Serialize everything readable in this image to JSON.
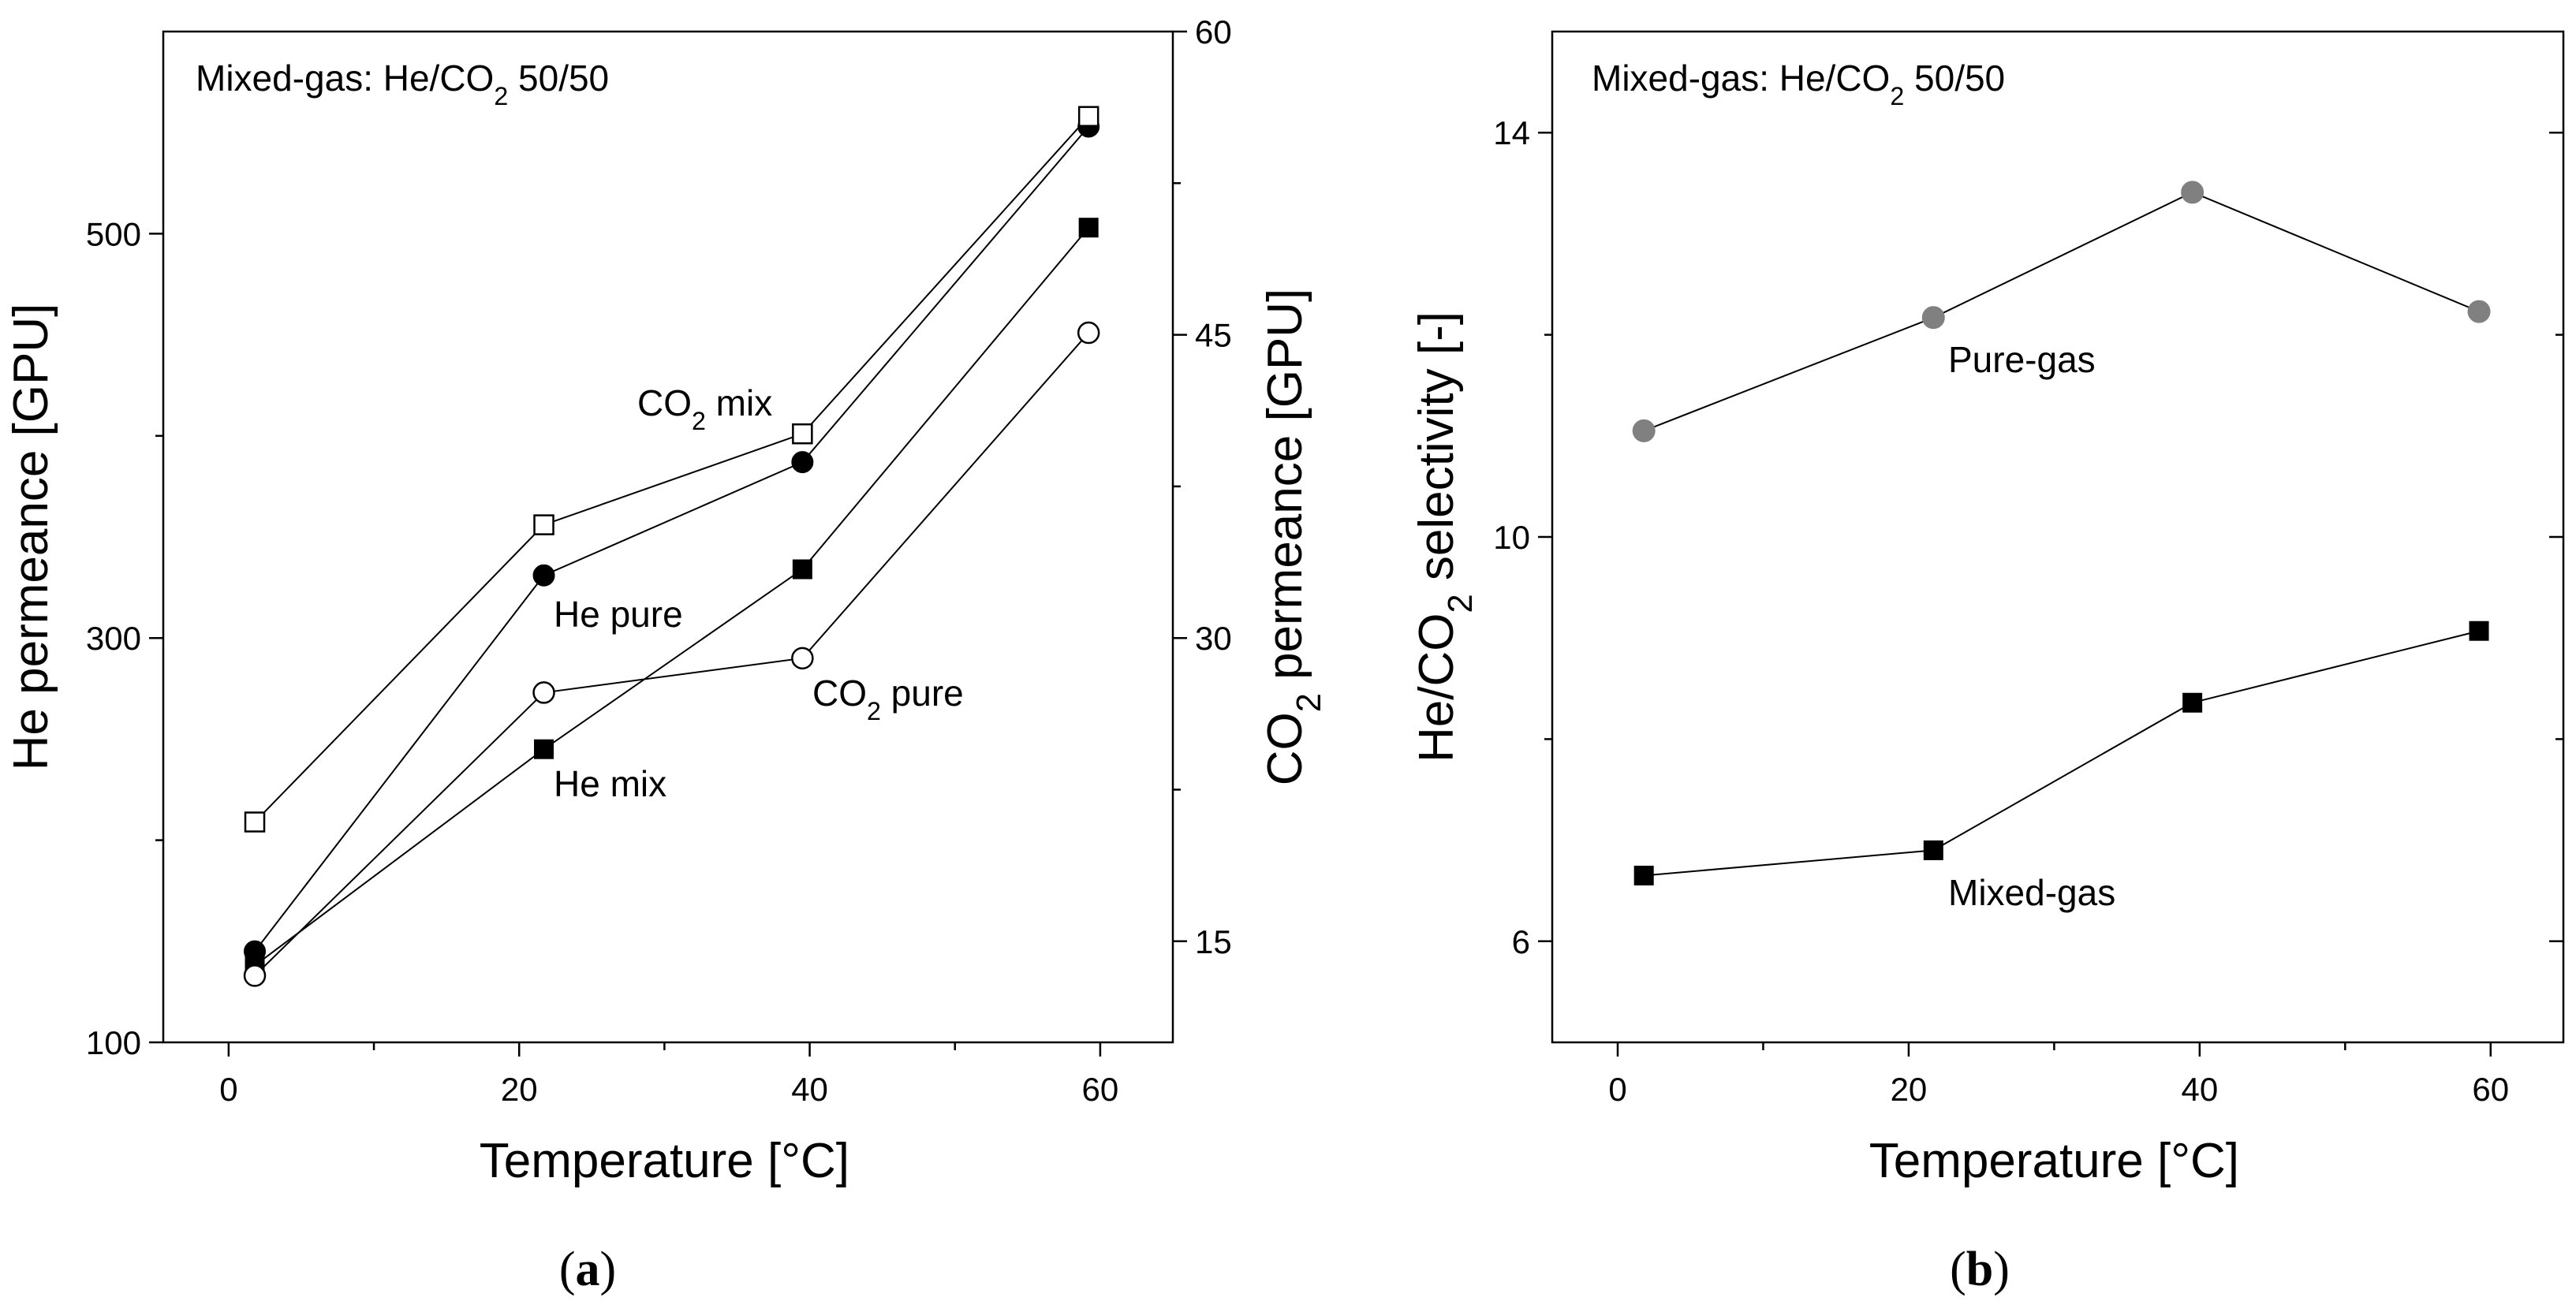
{
  "figure": {
    "caption_a": {
      "open": "(",
      "letter": "a",
      "close": ")"
    },
    "caption_b": {
      "open": "(",
      "letter": "b",
      "close": ")"
    }
  },
  "chart_data": [
    {
      "id": "a",
      "type": "line",
      "title": "",
      "note": "Mixed-gas: He/CO2 50/50",
      "note_parts": {
        "base": "Mixed-gas: He/CO",
        "sub": "2",
        "after": " 50/50"
      },
      "xlabel": "Temperature [°C]",
      "xlim": [
        -4.5,
        65
      ],
      "xticks": [
        0,
        20,
        40,
        60
      ],
      "y_left": {
        "label": "He permeance [GPU]",
        "lim": [
          100,
          600
        ],
        "ticks": [
          100,
          300,
          500
        ]
      },
      "y_right": {
        "label": "CO2 permeance [GPU]",
        "label_parts": {
          "base": "CO",
          "sub": "2",
          "after": " permeance [GPU]"
        },
        "lim": [
          10,
          60
        ],
        "ticks": [
          15,
          30,
          45,
          60
        ]
      },
      "series": [
        {
          "name": "He pure",
          "axis": "left",
          "marker": "filled-circle",
          "x": [
            1.8,
            21.7,
            39.5,
            59.2
          ],
          "values": [
            145,
            331,
            387,
            553
          ],
          "label_parts": {
            "base": "He pure",
            "sub": "",
            "after": ""
          }
        },
        {
          "name": "He mix",
          "axis": "left",
          "marker": "filled-square",
          "x": [
            1.8,
            21.7,
            39.5,
            59.2
          ],
          "values": [
            138,
            245,
            334,
            503
          ],
          "label_parts": {
            "base": "He mix",
            "sub": "",
            "after": ""
          }
        },
        {
          "name": "CO2 pure",
          "axis": "right",
          "marker": "open-circle",
          "x": [
            1.8,
            21.7,
            39.5,
            59.2
          ],
          "values": [
            13.3,
            27.3,
            29.0,
            45.1
          ],
          "label_parts": {
            "base": "CO",
            "sub": "2",
            "after": " pure"
          }
        },
        {
          "name": "CO2 mix",
          "axis": "right",
          "marker": "open-square",
          "x": [
            1.8,
            21.7,
            39.5,
            59.2
          ],
          "values": [
            20.9,
            35.6,
            40.1,
            55.8
          ],
          "label_parts": {
            "base": "CO",
            "sub": "2",
            "after": " mix"
          }
        }
      ]
    },
    {
      "id": "b",
      "type": "line",
      "title": "",
      "note": "Mixed-gas: He/CO2 50/50",
      "note_parts": {
        "base": "Mixed-gas: He/CO",
        "sub": "2",
        "after": " 50/50"
      },
      "xlabel": "Temperature [°C]",
      "xlim": [
        -4.5,
        65
      ],
      "xticks": [
        0,
        20,
        40,
        60
      ],
      "y_left": {
        "label": "He/CO2 selectivity [-]",
        "label_parts": {
          "base": "He/CO",
          "sub": "2",
          "after": " selectivity [-]"
        },
        "lim": [
          5,
          15
        ],
        "ticks": [
          6,
          10,
          14
        ]
      },
      "series": [
        {
          "name": "Pure-gas",
          "marker": "gray-circle",
          "color": "#808080",
          "x": [
            1.8,
            21.7,
            39.5,
            59.2
          ],
          "values": [
            11.05,
            12.17,
            13.41,
            12.23
          ],
          "label_parts": {
            "base": "Pure-gas",
            "sub": "",
            "after": ""
          }
        },
        {
          "name": "Mixed-gas",
          "marker": "filled-square",
          "color": "#000000",
          "x": [
            1.8,
            21.7,
            39.5,
            59.2
          ],
          "values": [
            6.65,
            6.9,
            8.36,
            9.07
          ],
          "label_parts": {
            "base": "Mixed-gas",
            "sub": "",
            "after": ""
          }
        }
      ]
    }
  ]
}
